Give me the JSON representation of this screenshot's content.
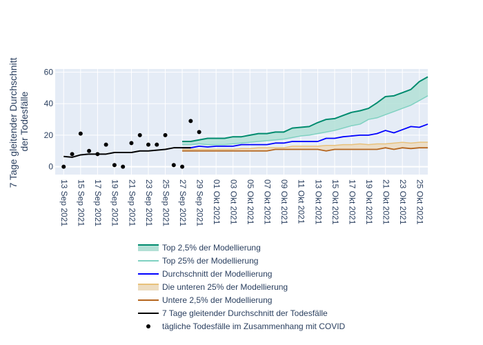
{
  "chart_data": {
    "type": "line",
    "title": "",
    "xlabel": "",
    "ylabel_lines": [
      "7 Tage gleitender Durchschnitt",
      "der Todesfälle"
    ],
    "ylim": [
      -5,
      62
    ],
    "yticks": [
      0,
      20,
      40,
      60
    ],
    "xrange": [
      "2021-09-12",
      "2021-10-26"
    ],
    "xtick_labels": [
      "13 Sep 2021",
      "15 Sep 2021",
      "17 Sep 2021",
      "19 Sep 2021",
      "21 Sep 2021",
      "23 Sep 2021",
      "25 Sep 2021",
      "27 Sep 2021",
      "29 Sep 2021",
      "01 Okt 2021",
      "03 Okt 2021",
      "05 Okt 2021",
      "07 Okt 2021",
      "09 Okt 2021",
      "11 Okt 2021",
      "13 Okt 2021",
      "15 Okt 2021",
      "17 Okt 2021",
      "19 Okt 2021",
      "21 Okt 2021",
      "23 Okt 2021",
      "25 Okt 2021"
    ],
    "xtick_dates": [
      "2021-09-13",
      "2021-09-15",
      "2021-09-17",
      "2021-09-19",
      "2021-09-21",
      "2021-09-23",
      "2021-09-25",
      "2021-09-27",
      "2021-09-29",
      "2021-10-01",
      "2021-10-03",
      "2021-10-05",
      "2021-10-07",
      "2021-10-09",
      "2021-10-11",
      "2021-10-13",
      "2021-10-15",
      "2021-10-17",
      "2021-10-19",
      "2021-10-21",
      "2021-10-23",
      "2021-10-25"
    ],
    "grid": true,
    "legend_position": "bottom",
    "colors": {
      "plot_bg": "#e5ecf6",
      "grid": "#ffffff",
      "text": "#2a3f5f",
      "top25": "#008b6e",
      "top25_fill": "#b3e0d6",
      "top_quartile": "#7fd1c1",
      "mean": "#0000ff",
      "low_quartile": "#e8c17a",
      "low_quartile_fill": "#eddcc0",
      "low25": "#b5651d",
      "avg": "#000000",
      "daily": "#000000"
    },
    "series": [
      {
        "key": "top25",
        "name": "Top 2,5% der Modellierung",
        "style": "line",
        "x": [
          "2021-09-27",
          "2021-09-28",
          "2021-09-29",
          "2021-09-30",
          "2021-10-01",
          "2021-10-02",
          "2021-10-03",
          "2021-10-04",
          "2021-10-05",
          "2021-10-06",
          "2021-10-07",
          "2021-10-08",
          "2021-10-09",
          "2021-10-10",
          "2021-10-11",
          "2021-10-12",
          "2021-10-13",
          "2021-10-14",
          "2021-10-15",
          "2021-10-16",
          "2021-10-17",
          "2021-10-18",
          "2021-10-19",
          "2021-10-20",
          "2021-10-21",
          "2021-10-22",
          "2021-10-23",
          "2021-10-24",
          "2021-10-25",
          "2021-10-26"
        ],
        "y": [
          16,
          16,
          17,
          18,
          18,
          18,
          19,
          19,
          20,
          21,
          21,
          22,
          22,
          24.5,
          25,
          25.5,
          28,
          30,
          30.5,
          32.5,
          34.5,
          35.5,
          37,
          40.5,
          44.5,
          45,
          47,
          49,
          54,
          57
        ]
      },
      {
        "key": "top_quartile",
        "name": "Top 25% der Modellierung",
        "style": "line",
        "x": [
          "2021-09-27",
          "2021-09-28",
          "2021-09-29",
          "2021-09-30",
          "2021-10-01",
          "2021-10-02",
          "2021-10-03",
          "2021-10-04",
          "2021-10-05",
          "2021-10-06",
          "2021-10-07",
          "2021-10-08",
          "2021-10-09",
          "2021-10-10",
          "2021-10-11",
          "2021-10-12",
          "2021-10-13",
          "2021-10-14",
          "2021-10-15",
          "2021-10-16",
          "2021-10-17",
          "2021-10-18",
          "2021-10-19",
          "2021-10-20",
          "2021-10-21",
          "2021-10-22",
          "2021-10-23",
          "2021-10-24",
          "2021-10-25",
          "2021-10-26"
        ],
        "y": [
          14,
          14,
          14.5,
          14,
          14,
          14,
          14.5,
          15,
          15.5,
          16,
          16.5,
          17,
          17.5,
          18.5,
          19.5,
          20,
          21,
          22,
          23,
          24.5,
          26,
          27,
          30,
          31,
          33,
          35,
          37,
          39,
          42,
          45
        ]
      },
      {
        "key": "mean",
        "name": "Durchschnitt der Modellierung",
        "style": "line",
        "x": [
          "2021-09-27",
          "2021-09-28",
          "2021-09-29",
          "2021-09-30",
          "2021-10-01",
          "2021-10-02",
          "2021-10-03",
          "2021-10-04",
          "2021-10-05",
          "2021-10-06",
          "2021-10-07",
          "2021-10-08",
          "2021-10-09",
          "2021-10-10",
          "2021-10-11",
          "2021-10-12",
          "2021-10-13",
          "2021-10-14",
          "2021-10-15",
          "2021-10-16",
          "2021-10-17",
          "2021-10-18",
          "2021-10-19",
          "2021-10-20",
          "2021-10-21",
          "2021-10-22",
          "2021-10-23",
          "2021-10-24",
          "2021-10-25",
          "2021-10-26"
        ],
        "y": [
          12,
          12,
          13,
          12.5,
          13,
          13,
          13,
          14,
          14,
          14,
          14,
          15,
          15,
          16,
          16,
          16,
          16,
          18,
          18,
          19,
          19.5,
          20,
          20,
          21,
          23,
          21.5,
          23.5,
          25.5,
          25,
          27
        ]
      },
      {
        "key": "low_quartile",
        "name": "Die unteren 25% der Modellierung",
        "style": "line",
        "x": [
          "2021-09-27",
          "2021-09-28",
          "2021-09-29",
          "2021-09-30",
          "2021-10-01",
          "2021-10-02",
          "2021-10-03",
          "2021-10-04",
          "2021-10-05",
          "2021-10-06",
          "2021-10-07",
          "2021-10-08",
          "2021-10-09",
          "2021-10-10",
          "2021-10-11",
          "2021-10-12",
          "2021-10-13",
          "2021-10-14",
          "2021-10-15",
          "2021-10-16",
          "2021-10-17",
          "2021-10-18",
          "2021-10-19",
          "2021-10-20",
          "2021-10-21",
          "2021-10-22",
          "2021-10-23",
          "2021-10-24",
          "2021-10-25",
          "2021-10-26"
        ],
        "y": [
          11,
          11,
          11,
          11,
          11,
          11,
          11,
          11.5,
          11.5,
          12,
          12,
          12,
          12,
          13,
          13,
          13,
          13,
          13.5,
          13.5,
          14,
          14,
          14.5,
          14,
          14.5,
          14.5,
          15,
          15.5,
          15,
          15.5,
          15.5
        ]
      },
      {
        "key": "low25",
        "name": "Untere 2,5% der Modellierung",
        "style": "line",
        "x": [
          "2021-09-27",
          "2021-09-28",
          "2021-09-29",
          "2021-09-30",
          "2021-10-01",
          "2021-10-02",
          "2021-10-03",
          "2021-10-04",
          "2021-10-05",
          "2021-10-06",
          "2021-10-07",
          "2021-10-08",
          "2021-10-09",
          "2021-10-10",
          "2021-10-11",
          "2021-10-12",
          "2021-10-13",
          "2021-10-14",
          "2021-10-15",
          "2021-10-16",
          "2021-10-17",
          "2021-10-18",
          "2021-10-19",
          "2021-10-20",
          "2021-10-21",
          "2021-10-22",
          "2021-10-23",
          "2021-10-24",
          "2021-10-25",
          "2021-10-26"
        ],
        "y": [
          10,
          10,
          10,
          10,
          10,
          10,
          10,
          10,
          10,
          10,
          10,
          11,
          11,
          11,
          11,
          11,
          11,
          10,
          11,
          11,
          11,
          11,
          11,
          11,
          12,
          11,
          12,
          11.5,
          12,
          12
        ]
      },
      {
        "key": "avg",
        "name": "7 Tage gleitender Durchschnitt der Todesfälle",
        "style": "line",
        "x": [
          "2021-09-13",
          "2021-09-14",
          "2021-09-15",
          "2021-09-16",
          "2021-09-17",
          "2021-09-18",
          "2021-09-19",
          "2021-09-20",
          "2021-09-21",
          "2021-09-22",
          "2021-09-23",
          "2021-09-24",
          "2021-09-25",
          "2021-09-26",
          "2021-09-27",
          "2021-09-28"
        ],
        "y": [
          6.5,
          6,
          7.5,
          8,
          8,
          8,
          9,
          9,
          9,
          10,
          10,
          10.5,
          11,
          12,
          12,
          12
        ]
      },
      {
        "key": "daily",
        "name": "tägliche Todesfälle im Zusammenhang mit COVID",
        "style": "markers",
        "x": [
          "2021-09-13",
          "2021-09-14",
          "2021-09-15",
          "2021-09-16",
          "2021-09-17",
          "2021-09-18",
          "2021-09-19",
          "2021-09-20",
          "2021-09-21",
          "2021-09-22",
          "2021-09-23",
          "2021-09-24",
          "2021-09-25",
          "2021-09-26",
          "2021-09-27",
          "2021-09-28",
          "2021-09-29"
        ],
        "y": [
          0,
          8,
          21,
          10,
          8,
          14,
          1,
          0,
          15,
          20,
          14,
          14,
          20,
          1,
          0,
          29,
          22
        ]
      }
    ],
    "bands": [
      {
        "upper": "top25",
        "lower": "top_quartile",
        "fill_color_key": "top25_fill"
      },
      {
        "upper": "low_quartile",
        "lower": "low25",
        "fill_color_key": "low_quartile_fill"
      }
    ]
  }
}
